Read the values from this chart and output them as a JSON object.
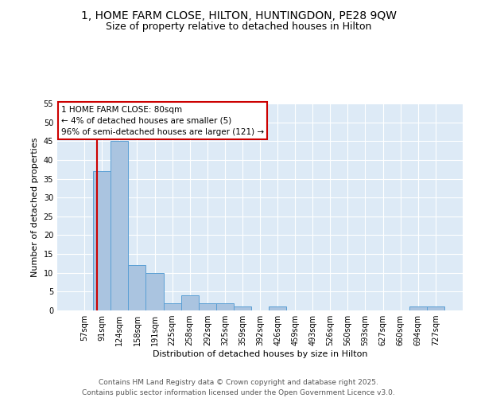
{
  "title_line1": "1, HOME FARM CLOSE, HILTON, HUNTINGDON, PE28 9QW",
  "title_line2": "Size of property relative to detached houses in Hilton",
  "categories": [
    "57sqm",
    "91sqm",
    "124sqm",
    "158sqm",
    "191sqm",
    "225sqm",
    "258sqm",
    "292sqm",
    "325sqm",
    "359sqm",
    "392sqm",
    "426sqm",
    "459sqm",
    "493sqm",
    "526sqm",
    "560sqm",
    "593sqm",
    "627sqm",
    "660sqm",
    "694sqm",
    "727sqm"
  ],
  "values": [
    0,
    37,
    45,
    12,
    10,
    2,
    4,
    2,
    2,
    1,
    0,
    1,
    0,
    0,
    0,
    0,
    0,
    0,
    0,
    1,
    1
  ],
  "bar_color": "#aac4e0",
  "bar_edge_color": "#5a9fd4",
  "background_color": "#ddeaf6",
  "vline_x_index": 0.72,
  "vline_color": "#cc0000",
  "xlabel": "Distribution of detached houses by size in Hilton",
  "ylabel": "Number of detached properties",
  "ylim": [
    0,
    55
  ],
  "yticks": [
    0,
    5,
    10,
    15,
    20,
    25,
    30,
    35,
    40,
    45,
    50,
    55
  ],
  "annotation_title": "1 HOME FARM CLOSE: 80sqm",
  "annotation_line2": "← 4% of detached houses are smaller (5)",
  "annotation_line3": "96% of semi-detached houses are larger (121) →",
  "annotation_box_color": "#ffffff",
  "annotation_edge_color": "#cc0000",
  "footer_line1": "Contains HM Land Registry data © Crown copyright and database right 2025.",
  "footer_line2": "Contains public sector information licensed under the Open Government Licence v3.0.",
  "title_fontsize": 10,
  "subtitle_fontsize": 9,
  "axis_label_fontsize": 8,
  "tick_fontsize": 7,
  "annotation_fontsize": 7.5,
  "footer_fontsize": 6.5
}
